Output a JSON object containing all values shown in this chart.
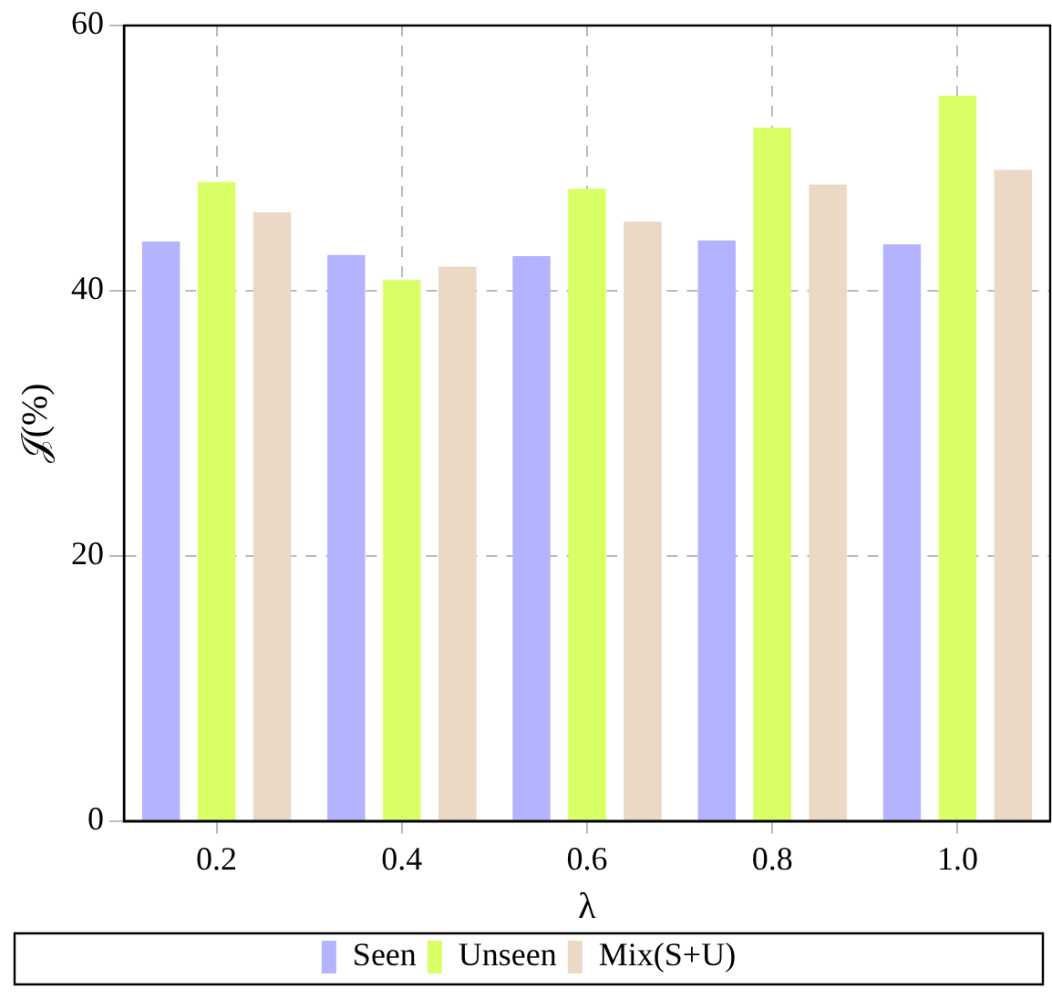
{
  "chart_data": {
    "type": "bar",
    "xlabel": "λ",
    "ylabel": "𝒥(%)",
    "categories": [
      "0.2",
      "0.4",
      "0.6",
      "0.8",
      "1.0"
    ],
    "series": [
      {
        "name": "Seen",
        "color": "#b3b3ff",
        "values": [
          43.7,
          42.7,
          42.6,
          43.8,
          43.5
        ]
      },
      {
        "name": "Unseen",
        "color": "#d9ff66",
        "values": [
          48.2,
          40.8,
          47.7,
          52.3,
          54.7
        ]
      },
      {
        "name": "Mix(S+U)",
        "color": "#ebd8c5",
        "values": [
          45.9,
          41.8,
          45.2,
          48.0,
          49.1
        ]
      }
    ],
    "ylim": [
      0,
      60
    ],
    "yticks": [
      0,
      20,
      40,
      60
    ],
    "grid": true,
    "legend": "bottom"
  }
}
